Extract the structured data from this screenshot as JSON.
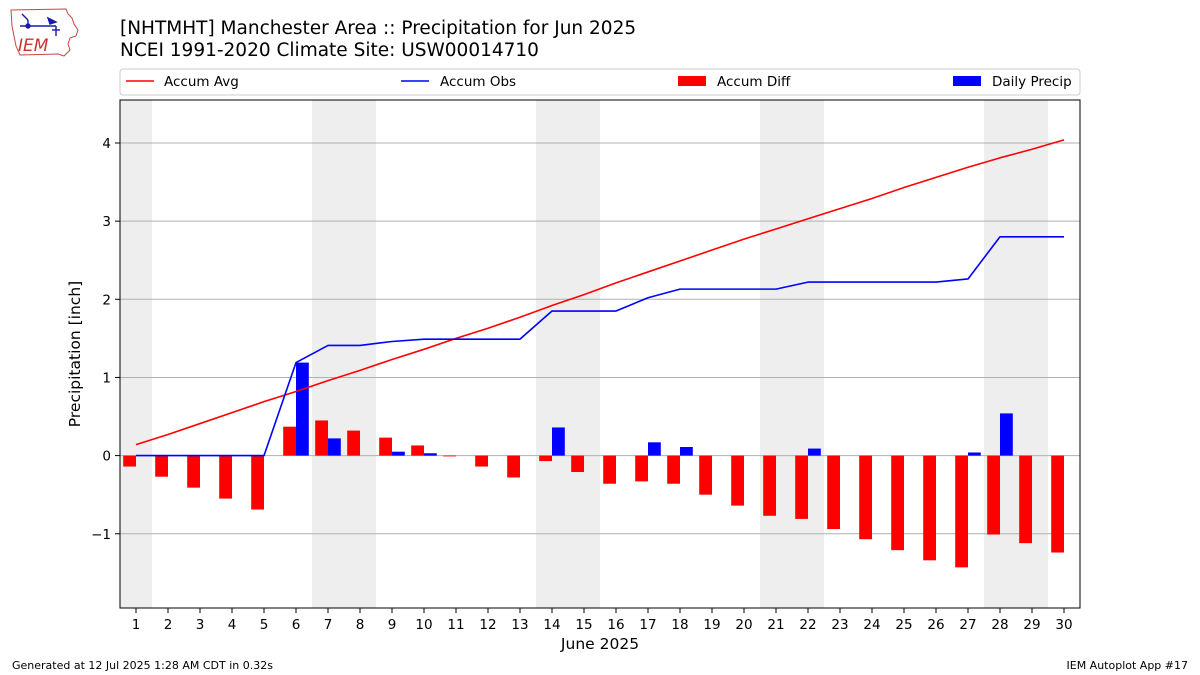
{
  "header": {
    "logo_text": "IEM",
    "title_line1": "[NHTMHT] Manchester Area :: Precipitation for Jun 2025",
    "title_line2": "NCEI 1991-2020 Climate Site: USW00014710"
  },
  "footer": {
    "left": "Generated at 12 Jul 2025 1:28 AM CDT in 0.32s",
    "right": "IEM Autoplot App #17"
  },
  "colors": {
    "accum_avg": "#ff0000",
    "accum_obs": "#0000ff",
    "accum_diff": "#ff0000",
    "daily_precip": "#0000ff",
    "weekend_shade": "#eeeeee",
    "grid": "#b0b0b0"
  },
  "chart_data": {
    "type": "bar",
    "xlabel": "June 2025",
    "ylabel": "Precipitation [inch]",
    "ylim": [
      -1.95,
      4.55
    ],
    "yticks": [
      -1,
      0,
      1,
      2,
      3,
      4
    ],
    "xlim": [
      0.5,
      30.5
    ],
    "x": [
      1,
      2,
      3,
      4,
      5,
      6,
      7,
      8,
      9,
      10,
      11,
      12,
      13,
      14,
      15,
      16,
      17,
      18,
      19,
      20,
      21,
      22,
      23,
      24,
      25,
      26,
      27,
      28,
      29,
      30
    ],
    "grid": "horizontal",
    "legend_position": "top",
    "shaded_days": [
      1,
      7,
      8,
      14,
      15,
      21,
      22,
      28,
      29
    ],
    "series": [
      {
        "name": "Accum Avg",
        "kind": "line",
        "values": [
          0.14,
          0.27,
          0.41,
          0.55,
          0.69,
          0.82,
          0.96,
          1.09,
          1.23,
          1.36,
          1.5,
          1.63,
          1.77,
          1.92,
          2.06,
          2.21,
          2.35,
          2.49,
          2.63,
          2.77,
          2.9,
          3.03,
          3.16,
          3.29,
          3.43,
          3.56,
          3.69,
          3.81,
          3.92,
          4.04
        ]
      },
      {
        "name": "Accum Obs",
        "kind": "line",
        "values": [
          0,
          0,
          0,
          0,
          0,
          1.19,
          1.41,
          1.41,
          1.46,
          1.49,
          1.49,
          1.49,
          1.49,
          1.85,
          1.85,
          1.85,
          2.02,
          2.13,
          2.13,
          2.13,
          2.13,
          2.22,
          2.22,
          2.22,
          2.22,
          2.22,
          2.26,
          2.8,
          2.8,
          2.8
        ]
      },
      {
        "name": "Accum Diff",
        "kind": "bar",
        "values": [
          -0.14,
          -0.27,
          -0.41,
          -0.55,
          -0.69,
          0.37,
          0.45,
          0.32,
          0.23,
          0.13,
          -0.01,
          -0.14,
          -0.28,
          -0.07,
          -0.21,
          -0.36,
          -0.33,
          -0.36,
          -0.5,
          -0.64,
          -0.77,
          -0.81,
          -0.94,
          -1.07,
          -1.21,
          -1.34,
          -1.43,
          -1.01,
          -1.12,
          -1.24
        ]
      },
      {
        "name": "Daily Precip",
        "kind": "bar",
        "values": [
          0,
          0,
          0,
          0,
          0,
          1.19,
          0.22,
          0,
          0.05,
          0.03,
          0,
          0,
          0,
          0.36,
          0,
          0,
          0.17,
          0.11,
          0,
          0,
          0,
          0.09,
          0,
          0,
          0,
          0,
          0.04,
          0.54,
          0,
          0
        ]
      }
    ]
  }
}
